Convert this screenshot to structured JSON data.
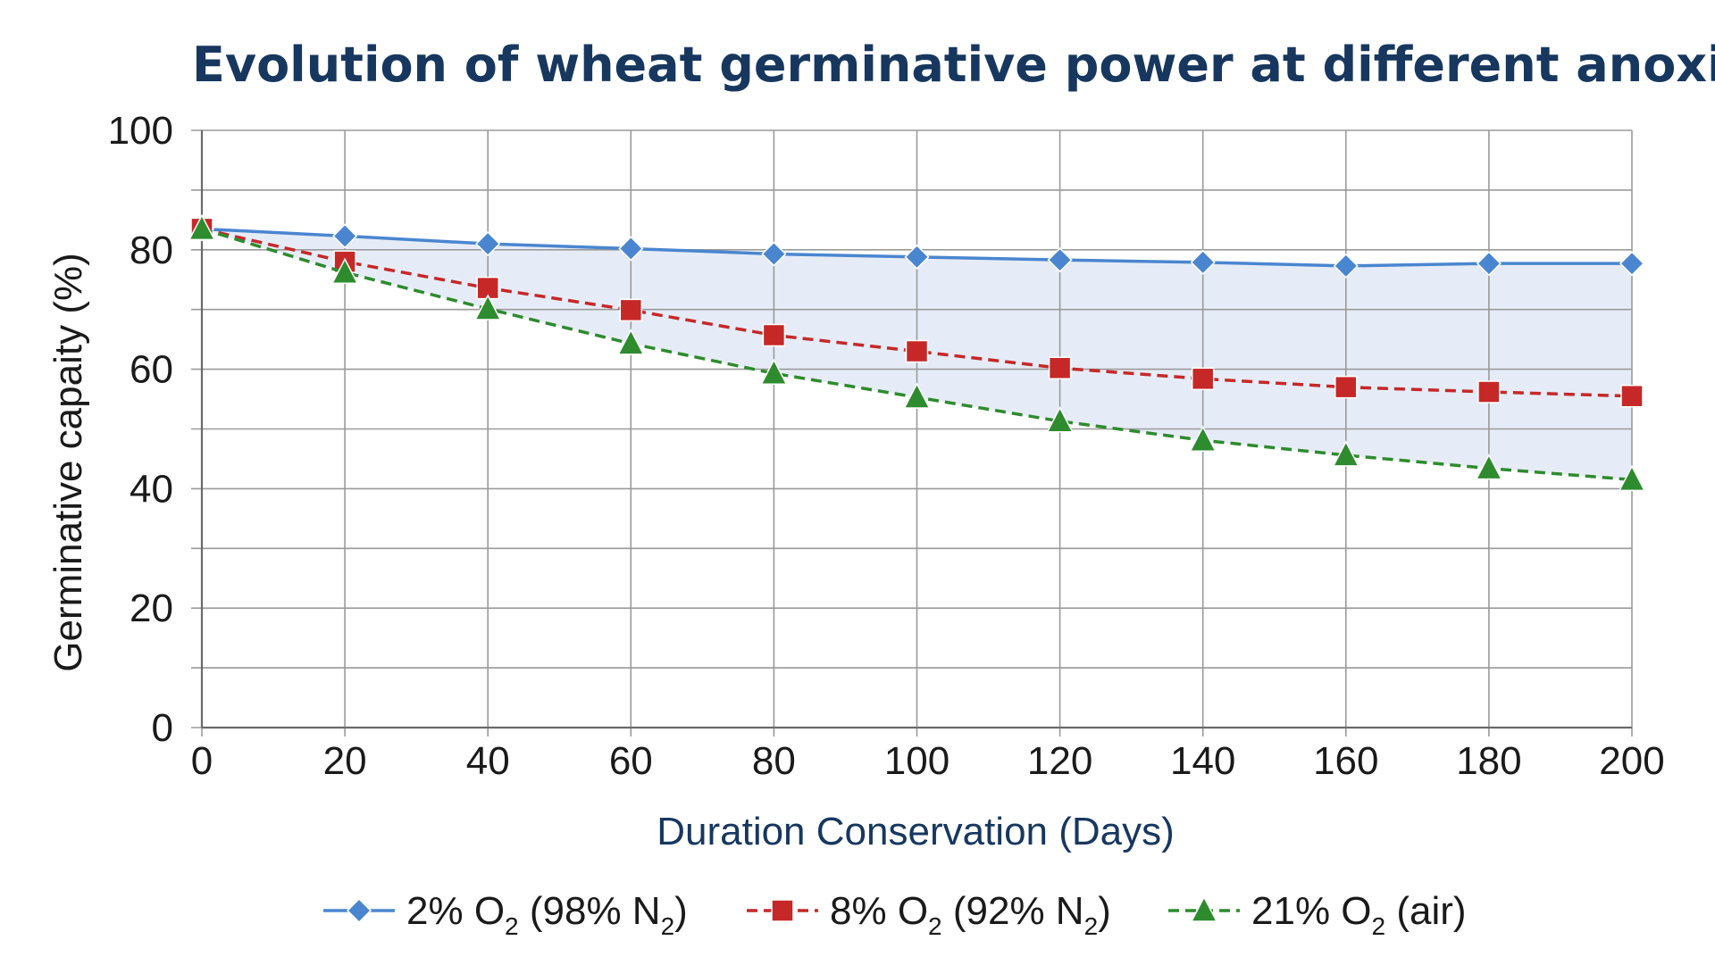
{
  "chart_data": {
    "type": "line",
    "title": "Evolution of wheat germinative power at different anoxias",
    "xlabel": "Duration Conservation (Days)",
    "ylabel": "Germinative capaity (%)",
    "xlim": [
      0,
      200
    ],
    "ylim": [
      0,
      100
    ],
    "x": [
      0,
      20,
      40,
      60,
      80,
      100,
      120,
      140,
      160,
      180,
      200
    ],
    "x_ticks": [
      "0",
      "20",
      "40",
      "60",
      "80",
      "100",
      "120",
      "140",
      "160",
      "180",
      "200"
    ],
    "y_ticks": [
      "0",
      "20",
      "40",
      "60",
      "80",
      "100"
    ],
    "grid": true,
    "legend_position": "bottom",
    "shaded_region_between": [
      "2% O2 (98% N2)",
      "21% O2 (air)"
    ],
    "shaded_color": "#e6ecf7",
    "series": [
      {
        "name": "2% O2 (98% N2)",
        "legend": {
          "pre": "2% O",
          "sub1": "2",
          "mid": " (98% N",
          "sub2": "2",
          "post": ")"
        },
        "values": [
          83.5,
          82.3,
          81.0,
          80.2,
          79.3,
          78.8,
          78.3,
          77.9,
          77.3,
          77.7,
          77.7
        ],
        "color": "#4a86d0",
        "line_style": "solid",
        "marker": "diamond"
      },
      {
        "name": "8% O2 (92% N2)",
        "legend": {
          "pre": "8% O",
          "sub1": "2",
          "mid": " (92% N",
          "sub2": "2",
          "post": ")"
        },
        "values": [
          83.5,
          78.0,
          73.6,
          69.9,
          65.7,
          63.0,
          60.2,
          58.4,
          57.0,
          56.2,
          55.5
        ],
        "color": "#c62828",
        "line_style": "dashed",
        "marker": "square"
      },
      {
        "name": "21% O2 (air)",
        "legend": {
          "pre": "21% O",
          "sub1": "2",
          "mid": " (air)",
          "sub2": "",
          "post": ""
        },
        "values": [
          83.5,
          76.2,
          70.1,
          64.3,
          59.3,
          55.3,
          51.3,
          48.1,
          45.6,
          43.4,
          41.5
        ],
        "color": "#2e8b2e",
        "line_style": "dashed",
        "marker": "triangle"
      }
    ],
    "colors": {
      "title": "#17375e",
      "xlabel": "#17375e",
      "ylabel": "#1a1a1a",
      "grid": "#9a9a9a"
    }
  }
}
